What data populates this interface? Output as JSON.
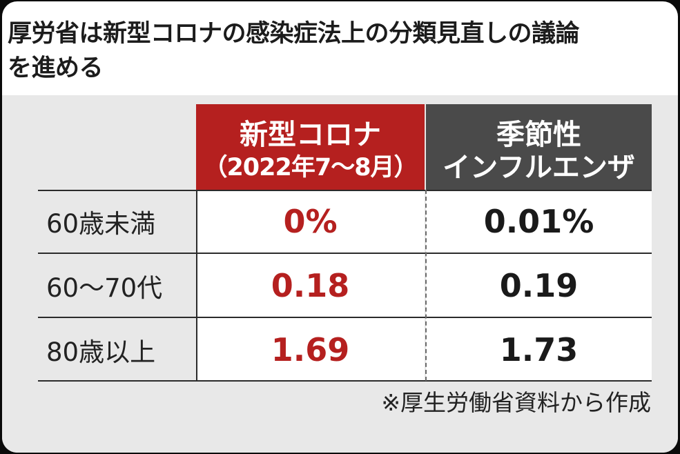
{
  "headline": "厚労省は新型コロナの感染症法上の分類見直しの議論を進める",
  "headline_line1": "厚労省は新型コロナの感染症法上の分類見直しの議論",
  "headline_line2": "を進める",
  "chart_data": {
    "type": "table",
    "columns": [
      {
        "name": "新型コロナ",
        "subtitle": "（2022年7～8月）",
        "color": "#b5201f"
      },
      {
        "name": "季節性",
        "subtitle": "インフルエンザ",
        "color": "#4a4a4a"
      }
    ],
    "rows": [
      {
        "label": "60歳未満",
        "covid": "0%",
        "flu": "0.01%"
      },
      {
        "label": "60～70代",
        "covid": "0.18",
        "flu": "0.19"
      },
      {
        "label": "80歳以上",
        "covid": "1.69",
        "flu": "1.73"
      }
    ],
    "values_numeric": {
      "categories": [
        "60歳未満",
        "60～70代",
        "80歳以上"
      ],
      "series": [
        {
          "name": "新型コロナ",
          "values": [
            0,
            0.18,
            1.69
          ]
        },
        {
          "name": "季節性インフルエンザ",
          "values": [
            0.01,
            0.19,
            1.73
          ]
        }
      ],
      "unit": "%"
    },
    "source": "※厚生労働省資料から作成"
  }
}
